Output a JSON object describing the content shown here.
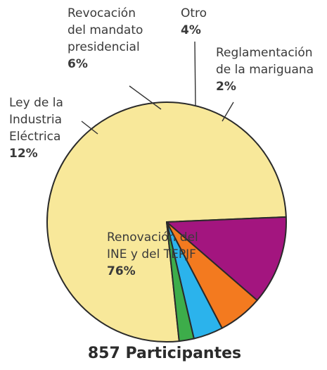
{
  "chart_data": {
    "type": "pie",
    "slices": [
      {
        "name_lines": [
          "Renovación del",
          "INE y del TEPJF"
        ],
        "value": 76,
        "value_label": "76%",
        "color": "#f8e89a"
      },
      {
        "name_lines": [
          "Ley de la",
          "Industria",
          "Eléctrica"
        ],
        "value": 12,
        "value_label": "12%",
        "color": "#a3157f"
      },
      {
        "name_lines": [
          "Revocación",
          "del mandato",
          "presidencial"
        ],
        "value": 6,
        "value_label": "6%",
        "color": "#f37a1f"
      },
      {
        "name_lines": [
          "Otro"
        ],
        "value": 4,
        "value_label": "4%",
        "color": "#2bb3ec"
      },
      {
        "name_lines": [
          "Reglamentación",
          "de la mariguana"
        ],
        "value": 2,
        "value_label": "2%",
        "color": "#3dad4a"
      }
    ],
    "total_label": "857 Participantes"
  }
}
